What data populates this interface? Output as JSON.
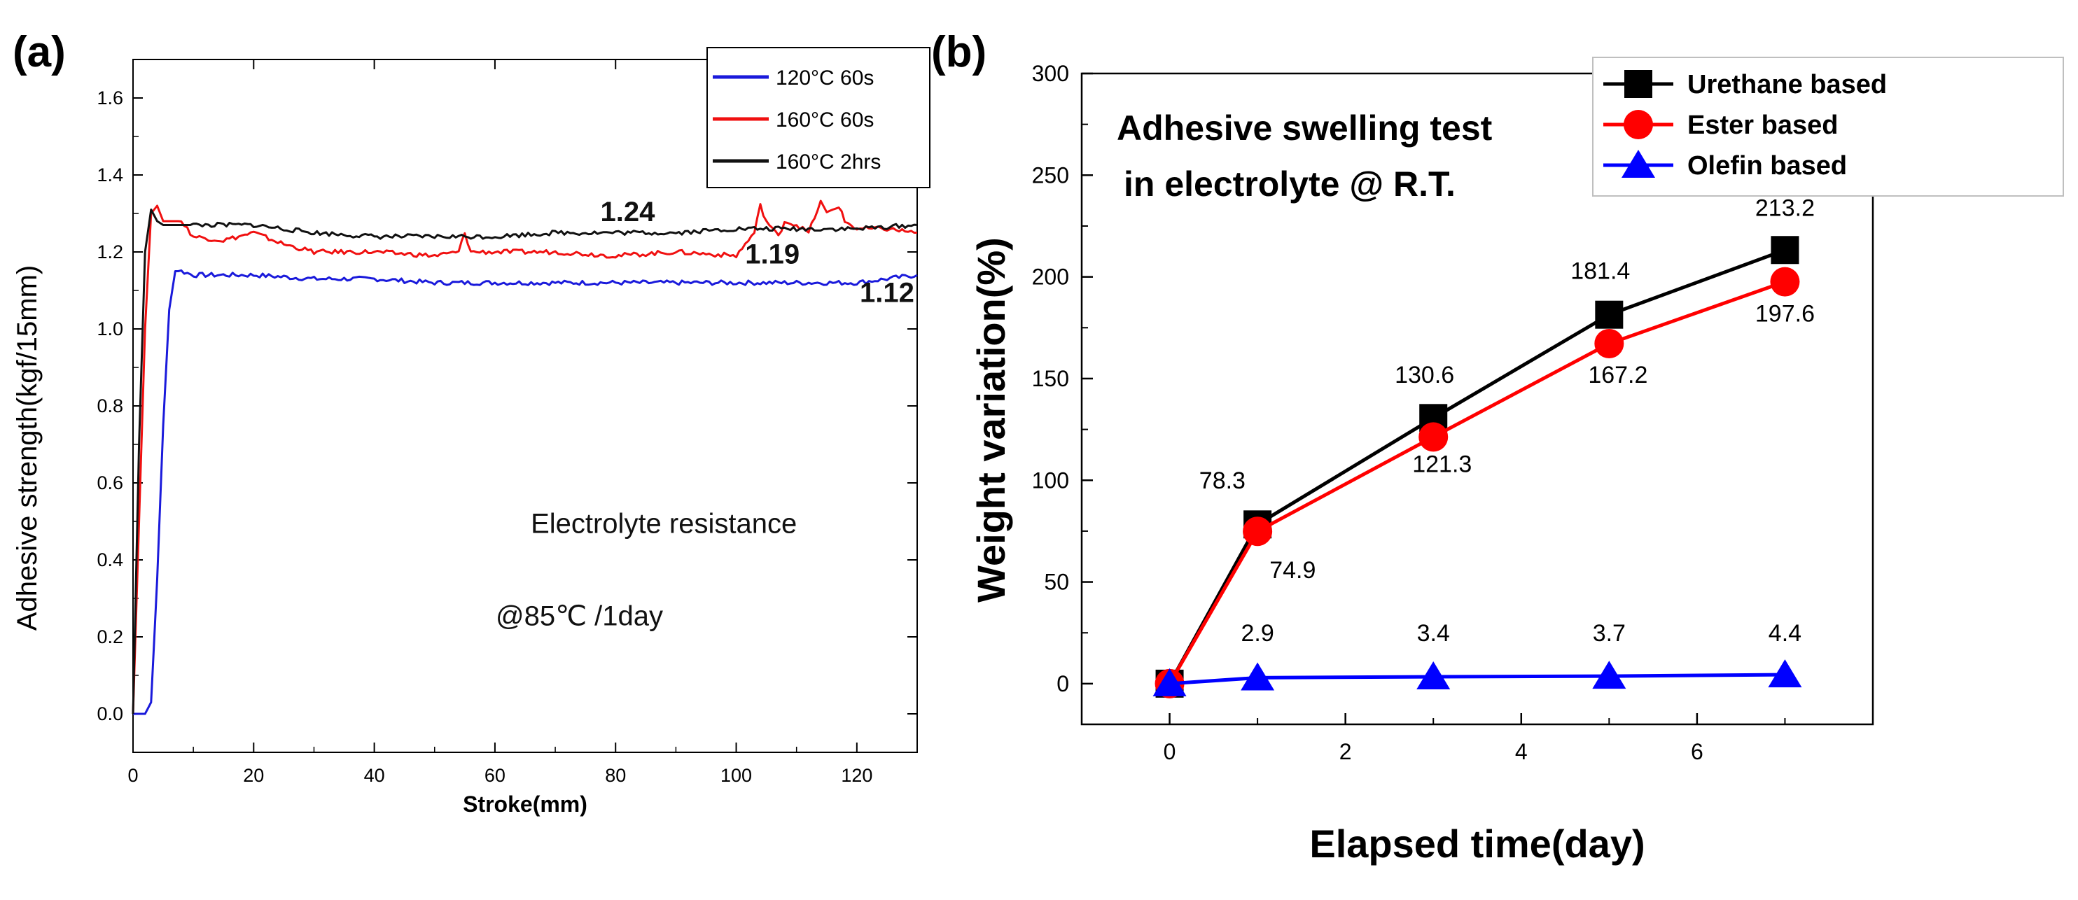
{
  "chart_data": [
    {
      "panel_label": "(a)",
      "type": "line",
      "xlabel": "Stroke(mm)",
      "ylabel": "Adhesive strength(kgf/15mm)",
      "xlim": [
        0,
        130
      ],
      "ylim": [
        -0.1,
        1.7
      ],
      "x_ticks": [
        0,
        20,
        40,
        60,
        80,
        100,
        120
      ],
      "y_ticks": [
        0.0,
        0.2,
        0.4,
        0.6,
        0.8,
        1.0,
        1.2,
        1.4,
        1.6
      ],
      "y_tick_labels": [
        "0.0",
        "0.2",
        "0.4",
        "0.6",
        "0.8",
        "1.0",
        "1.2",
        "1.4",
        "1.6"
      ],
      "grid": false,
      "legend_position": "top-right",
      "legend": [
        {
          "label": "120°C 60s",
          "color": "#1a1adb"
        },
        {
          "label": "160°C 60s",
          "color": "#f01010"
        },
        {
          "label": "160°C 2hrs",
          "color": "#111111"
        }
      ],
      "series": [
        {
          "name": "120°C 60s",
          "color": "#1a1adb",
          "x": [
            0,
            1,
            2,
            3,
            4,
            5,
            6,
            7,
            8,
            10,
            20,
            30,
            40,
            50,
            60,
            70,
            80,
            90,
            100,
            110,
            120,
            130
          ],
          "y": [
            0.0,
            0.0,
            0.0,
            0.03,
            0.35,
            0.75,
            1.05,
            1.15,
            1.15,
            1.14,
            1.14,
            1.13,
            1.13,
            1.12,
            1.12,
            1.12,
            1.12,
            1.12,
            1.12,
            1.12,
            1.12,
            1.14
          ]
        },
        {
          "name": "160°C 60s",
          "color": "#f01010",
          "x": [
            0,
            1,
            2,
            3,
            4,
            5,
            8,
            10,
            15,
            20,
            25,
            30,
            40,
            50,
            54,
            55,
            56,
            60,
            70,
            80,
            90,
            100,
            103,
            104,
            105,
            107,
            108,
            110,
            112,
            114,
            115,
            117,
            118,
            120,
            125,
            130
          ],
          "y": [
            0.0,
            0.5,
            1.0,
            1.3,
            1.32,
            1.28,
            1.28,
            1.24,
            1.23,
            1.25,
            1.22,
            1.2,
            1.2,
            1.19,
            1.2,
            1.25,
            1.2,
            1.2,
            1.2,
            1.19,
            1.2,
            1.19,
            1.25,
            1.32,
            1.28,
            1.24,
            1.28,
            1.27,
            1.25,
            1.33,
            1.3,
            1.32,
            1.28,
            1.26,
            1.26,
            1.25
          ]
        },
        {
          "name": "160°C 2hrs",
          "color": "#111111",
          "x": [
            0,
            1,
            2,
            3,
            4,
            5,
            10,
            20,
            30,
            40,
            50,
            60,
            70,
            80,
            90,
            100,
            110,
            120,
            130
          ],
          "y": [
            0.0,
            0.7,
            1.2,
            1.31,
            1.28,
            1.27,
            1.27,
            1.27,
            1.25,
            1.24,
            1.24,
            1.24,
            1.25,
            1.25,
            1.25,
            1.26,
            1.26,
            1.26,
            1.27
          ]
        }
      ],
      "annotations": [
        {
          "text": "1.24",
          "x": 82,
          "y": 1.28
        },
        {
          "text": "1.19",
          "x": 106,
          "y": 1.17
        },
        {
          "text": "1.12",
          "x": 125,
          "y": 1.07
        },
        {
          "text": "Electrolyte resistance",
          "x": 88,
          "y": 0.47
        },
        {
          "text": "@85℃ /1day",
          "x": 74,
          "y": 0.23
        }
      ]
    },
    {
      "panel_label": "(b)",
      "type": "line",
      "title": "Adhesive swelling test\n in electrolyte @ R.T.",
      "xlabel": "Elapsed time(day)",
      "ylabel": "Weight variation(%)",
      "xlim": [
        -1,
        8
      ],
      "ylim": [
        -20,
        300
      ],
      "x_ticks": [
        0,
        2,
        4,
        6
      ],
      "y_ticks": [
        0,
        50,
        100,
        150,
        200,
        250,
        300
      ],
      "grid": false,
      "legend_position": "top-right",
      "legend": [
        {
          "label": "Urethane based",
          "color": "#000000",
          "marker": "square"
        },
        {
          "label": "Ester based",
          "color": "#ff0000",
          "marker": "circle"
        },
        {
          "label": "Olefin based",
          "color": "#0000ff",
          "marker": "triangle"
        }
      ],
      "x": [
        0,
        1,
        3,
        5,
        7
      ],
      "series": [
        {
          "name": "Urethane based",
          "color": "#000000",
          "marker": "square",
          "values": [
            0,
            78.3,
            130.6,
            181.4,
            213.2
          ]
        },
        {
          "name": "Ester based",
          "color": "#ff0000",
          "marker": "circle",
          "values": [
            0,
            74.9,
            121.3,
            167.2,
            197.6
          ]
        },
        {
          "name": "Olefin based",
          "color": "#0000ff",
          "marker": "triangle",
          "values": [
            0,
            2.9,
            3.4,
            3.7,
            4.4
          ]
        }
      ],
      "data_labels": [
        {
          "text": "78.3",
          "x": 0.6,
          "y": 96
        },
        {
          "text": "74.9",
          "x": 1.4,
          "y": 52
        },
        {
          "text": "130.6",
          "x": 2.9,
          "y": 148
        },
        {
          "text": "121.3",
          "x": 3.1,
          "y": 104
        },
        {
          "text": "181.4",
          "x": 4.9,
          "y": 199
        },
        {
          "text": "167.2",
          "x": 5.1,
          "y": 148
        },
        {
          "text": "213.2",
          "x": 7.0,
          "y": 230
        },
        {
          "text": "197.6",
          "x": 7.0,
          "y": 178
        },
        {
          "text": "2.9",
          "x": 1.0,
          "y": 21
        },
        {
          "text": "3.4",
          "x": 3.0,
          "y": 21
        },
        {
          "text": "3.7",
          "x": 5.0,
          "y": 21
        },
        {
          "text": "4.4",
          "x": 7.0,
          "y": 21
        }
      ]
    }
  ]
}
